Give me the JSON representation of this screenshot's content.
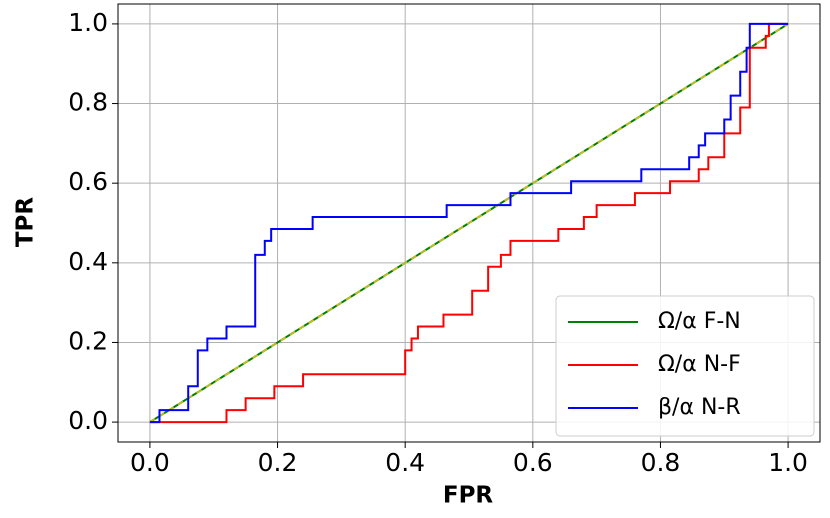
{
  "chart_data": {
    "type": "line",
    "xlabel": "FPR",
    "ylabel": "TPR",
    "xlim": [
      -0.05,
      1.05
    ],
    "ylim": [
      -0.05,
      1.05
    ],
    "xticks": [
      {
        "value": 0,
        "label": "0.0"
      },
      {
        "value": 0.2,
        "label": "0.2"
      },
      {
        "value": 0.4,
        "label": "0.4"
      },
      {
        "value": 0.6,
        "label": "0.6"
      },
      {
        "value": 0.8,
        "label": "0.8"
      },
      {
        "value": 1,
        "label": "1.0"
      }
    ],
    "yticks": [
      {
        "value": 0,
        "label": "0.0"
      },
      {
        "value": 0.2,
        "label": "0.2"
      },
      {
        "value": 0.4,
        "label": "0.4"
      },
      {
        "value": 0.6,
        "label": "0.6"
      },
      {
        "value": 0.8,
        "label": "0.8"
      },
      {
        "value": 1,
        "label": "1.0"
      }
    ],
    "grid": true,
    "legend": "lower right",
    "series": [
      {
        "name": "Ω/α F-N",
        "color": "#008000",
        "overlay_color": "#bcbd22",
        "x": [
          0,
          1
        ],
        "values": [
          0,
          1
        ]
      },
      {
        "name": "Ω/α N-F",
        "color": "#ff0000",
        "x": [
          0,
          0.12,
          0.12,
          0.15,
          0.15,
          0.195,
          0.195,
          0.24,
          0.24,
          0.4,
          0.4,
          0.41,
          0.41,
          0.42,
          0.42,
          0.46,
          0.46,
          0.505,
          0.505,
          0.53,
          0.53,
          0.55,
          0.55,
          0.565,
          0.565,
          0.64,
          0.64,
          0.68,
          0.68,
          0.7,
          0.7,
          0.76,
          0.76,
          0.815,
          0.815,
          0.86,
          0.86,
          0.875,
          0.875,
          0.9,
          0.9,
          0.925,
          0.925,
          0.94,
          0.94,
          0.965,
          0.965,
          0.97,
          0.97,
          1
        ],
        "values": [
          0,
          0,
          0.03,
          0.03,
          0.06,
          0.06,
          0.09,
          0.09,
          0.12,
          0.12,
          0.18,
          0.18,
          0.21,
          0.21,
          0.24,
          0.24,
          0.27,
          0.27,
          0.33,
          0.33,
          0.39,
          0.39,
          0.42,
          0.42,
          0.455,
          0.455,
          0.485,
          0.485,
          0.515,
          0.515,
          0.545,
          0.545,
          0.575,
          0.575,
          0.605,
          0.605,
          0.635,
          0.635,
          0.665,
          0.665,
          0.725,
          0.725,
          0.79,
          0.79,
          0.94,
          0.94,
          0.97,
          0.97,
          1,
          1
        ]
      },
      {
        "name": "β/α N-R",
        "color": "#0000ff",
        "x": [
          0,
          0.015,
          0.015,
          0.06,
          0.06,
          0.075,
          0.075,
          0.09,
          0.09,
          0.12,
          0.12,
          0.165,
          0.165,
          0.18,
          0.18,
          0.19,
          0.19,
          0.255,
          0.255,
          0.465,
          0.465,
          0.565,
          0.565,
          0.66,
          0.66,
          0.77,
          0.77,
          0.845,
          0.845,
          0.86,
          0.86,
          0.87,
          0.87,
          0.9,
          0.9,
          0.91,
          0.91,
          0.925,
          0.925,
          0.935,
          0.935,
          0.94,
          0.94,
          1
        ],
        "values": [
          0,
          0,
          0.03,
          0.03,
          0.09,
          0.09,
          0.18,
          0.18,
          0.21,
          0.21,
          0.24,
          0.24,
          0.42,
          0.42,
          0.455,
          0.455,
          0.485,
          0.485,
          0.515,
          0.515,
          0.545,
          0.545,
          0.575,
          0.575,
          0.605,
          0.605,
          0.635,
          0.635,
          0.665,
          0.665,
          0.695,
          0.695,
          0.725,
          0.725,
          0.76,
          0.76,
          0.82,
          0.82,
          0.88,
          0.88,
          0.94,
          0.94,
          1,
          1
        ]
      }
    ]
  }
}
